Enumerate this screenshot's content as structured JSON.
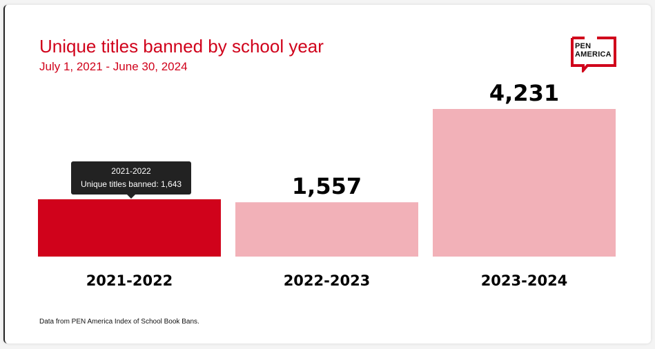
{
  "header": {
    "title": "Unique titles banned by school year",
    "subtitle": "July 1, 2021 - June 30, 2024"
  },
  "logo": {
    "line1": "PEN",
    "line2": "AMERICA",
    "color": "#d0021b"
  },
  "tooltip": {
    "title": "2021-2022",
    "text": "Unique titles banned: 1,643"
  },
  "source": "Data from PEN America Index of School Book Bans.",
  "colors": {
    "accent": "#d0021b",
    "bar_default": "#f2b1b8",
    "bar_active": "#d0021b"
  },
  "chart_data": {
    "type": "bar",
    "categories": [
      "2021-2022",
      "2022-2023",
      "2023-2024"
    ],
    "values": [
      1643,
      1557,
      4231
    ],
    "value_labels": [
      "",
      "1,557",
      "4,231"
    ],
    "active_index": 0,
    "ylim": [
      0,
      4231
    ],
    "title": "Unique titles banned by school year",
    "subtitle": "July 1, 2021 - June 30, 2024",
    "xlabel": "",
    "ylabel": "",
    "grid": false
  }
}
